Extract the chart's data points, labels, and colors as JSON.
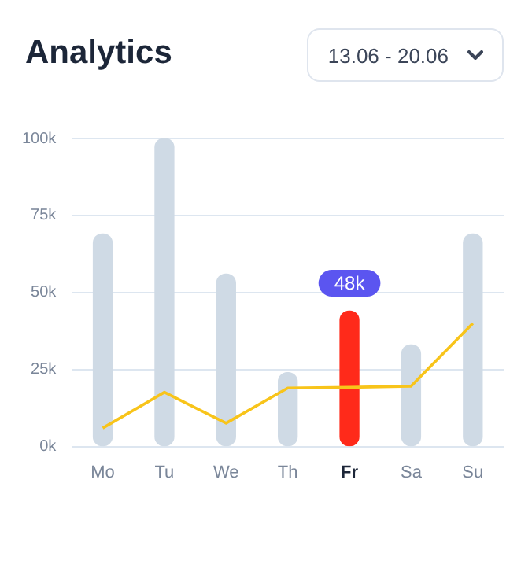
{
  "chart_data": {
    "type": "bar",
    "title": "Analytics",
    "categories": [
      "Mo",
      "Tu",
      "We",
      "Th",
      "Fr",
      "Sa",
      "Su"
    ],
    "series": [
      {
        "colors": [
          "#cfdae5",
          "#cfdae5",
          "#cfdae5",
          "#cfdae5",
          "#ff2a1a",
          "#cfdae5",
          "#cfdae5"
        ],
        "values": [
          69,
          100,
          56,
          24,
          44,
          33,
          69
        ]
      },
      {
        "type": "line",
        "color": "#f8c41a",
        "values": [
          6,
          17.6,
          7.6,
          19,
          19.2,
          19.6,
          40
        ]
      }
    ],
    "ylim": [
      0,
      100
    ],
    "yticks": [
      {
        "value": 0,
        "label": "0k"
      },
      {
        "value": 25,
        "label": "25k"
      },
      {
        "value": 50,
        "label": "50k"
      },
      {
        "value": 75,
        "label": "75k"
      },
      {
        "value": 100,
        "label": "100k"
      }
    ],
    "grid": "y",
    "legend": false,
    "marker": "none",
    "line_style": "solid",
    "annotations": [
      "13.06 - 20.06",
      {
        "text": "48k",
        "x": "Fr",
        "y": 53
      }
    ]
  }
}
